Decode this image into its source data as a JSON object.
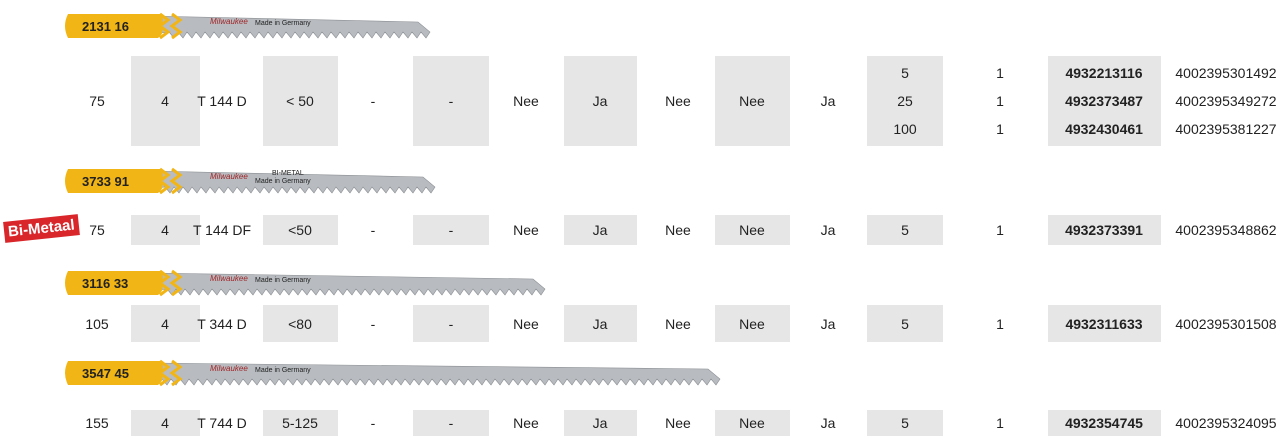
{
  "groups": [
    {
      "blade": {
        "code": "2131 16",
        "logo": "Milwaukee",
        "text": "Made in Germany"
      },
      "cells": [
        [
          "75"
        ],
        [
          "4"
        ],
        [
          "T 144 D"
        ],
        [
          "< 50"
        ],
        [
          "-"
        ],
        [
          "-"
        ],
        [
          "Nee"
        ],
        [
          "Ja"
        ],
        [
          "Nee"
        ],
        [
          "Nee"
        ],
        [
          "Ja"
        ],
        [
          "5",
          "25",
          "100"
        ],
        [
          "1",
          "1",
          "1"
        ],
        [
          "4932213116",
          "4932373487",
          "4932430461"
        ],
        [
          "4002395301492",
          "4002395349272",
          "4002395381227"
        ]
      ]
    },
    {
      "blade": {
        "code": "3733 91",
        "logo": "Milwaukee",
        "metal": "BI-METAL",
        "text": "Made in Germany"
      },
      "badge": "Bi-Metaal",
      "cells": [
        [
          "75"
        ],
        [
          "4"
        ],
        [
          "T 144 DF"
        ],
        [
          "<50"
        ],
        [
          "-"
        ],
        [
          "-"
        ],
        [
          "Nee"
        ],
        [
          "Ja"
        ],
        [
          "Nee"
        ],
        [
          "Nee"
        ],
        [
          "Ja"
        ],
        [
          "5"
        ],
        [
          "1"
        ],
        [
          "4932373391"
        ],
        [
          "4002395348862"
        ]
      ]
    },
    {
      "blade": {
        "code": "3116 33",
        "logo": "Milwaukee",
        "text": "Made in Germany"
      },
      "cells": [
        [
          "105"
        ],
        [
          "4"
        ],
        [
          "T 344 D"
        ],
        [
          "<80"
        ],
        [
          "-"
        ],
        [
          "-"
        ],
        [
          "Nee"
        ],
        [
          "Ja"
        ],
        [
          "Nee"
        ],
        [
          "Nee"
        ],
        [
          "Ja"
        ],
        [
          "5"
        ],
        [
          "1"
        ],
        [
          "4932311633"
        ],
        [
          "4002395301508"
        ]
      ]
    },
    {
      "blade": {
        "code": "3547 45",
        "logo": "Milwaukee",
        "text": "Made in Germany"
      },
      "cells": [
        [
          "155"
        ],
        [
          "4"
        ],
        [
          "T 744 D"
        ],
        [
          "5-125"
        ],
        [
          "-"
        ],
        [
          "-"
        ],
        [
          "Nee"
        ],
        [
          "Ja"
        ],
        [
          "Nee"
        ],
        [
          "Nee"
        ],
        [
          "Ja"
        ],
        [
          "5"
        ],
        [
          "1"
        ],
        [
          "4932354745"
        ],
        [
          "4002395324095"
        ]
      ]
    }
  ]
}
